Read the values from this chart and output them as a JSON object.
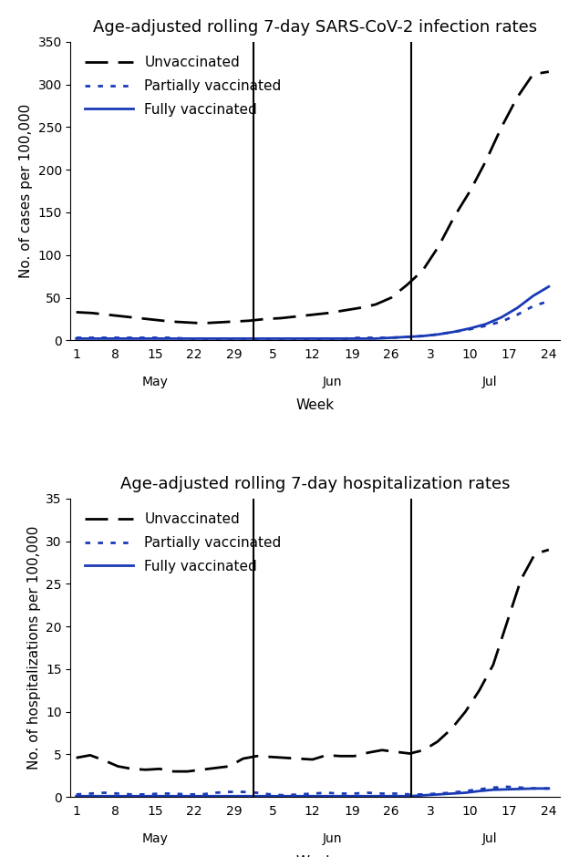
{
  "title1": "Age-adjusted rolling 7-day SARS-CoV-2 infection rates",
  "title2": "Age-adjusted rolling 7-day hospitalization rates",
  "ylabel1": "No. of cases per 100,000",
  "ylabel2": "No. of hospitalizations per 100,000",
  "xlabel": "Week",
  "ylim1": [
    0,
    350
  ],
  "ylim2": [
    0,
    35
  ],
  "yticks1": [
    0,
    50,
    100,
    150,
    200,
    250,
    300,
    350
  ],
  "yticks2": [
    0,
    5,
    10,
    15,
    20,
    25,
    30,
    35
  ],
  "legend_labels": [
    "Unvaccinated",
    "Partially vaccinated",
    "Fully vaccinated"
  ],
  "infection_unvaccinated": [
    33,
    32,
    30,
    28,
    26,
    24,
    22,
    21,
    20,
    21,
    22,
    23,
    25,
    26,
    28,
    30,
    32,
    35,
    38,
    42,
    50,
    65,
    82,
    110,
    145,
    175,
    210,
    250,
    285,
    312,
    315
  ],
  "infection_partial": [
    3,
    3,
    3,
    3,
    3,
    3,
    3,
    2,
    2,
    2,
    2,
    2,
    2,
    2,
    2,
    2,
    2,
    2,
    3,
    3,
    3,
    4,
    5,
    7,
    10,
    13,
    17,
    22,
    30,
    40,
    46
  ],
  "infection_full": [
    2,
    2,
    2,
    2,
    2,
    2,
    2,
    2,
    2,
    2,
    2,
    2,
    2,
    2,
    2,
    2,
    2,
    2,
    2,
    2,
    3,
    4,
    5,
    7,
    10,
    14,
    19,
    27,
    38,
    52,
    63
  ],
  "hosp_unvaccinated": [
    4.6,
    4.9,
    4.3,
    3.6,
    3.3,
    3.2,
    3.3,
    3.0,
    3.0,
    3.2,
    3.4,
    3.6,
    4.5,
    4.8,
    4.7,
    4.6,
    4.5,
    4.4,
    4.9,
    4.8,
    4.8,
    5.2,
    5.5,
    5.3,
    5.1,
    5.5,
    6.5,
    8.0,
    10.0,
    12.5,
    15.5,
    20.5,
    25.5,
    28.5,
    29.0
  ],
  "hosp_partial": [
    0.3,
    0.4,
    0.5,
    0.4,
    0.3,
    0.3,
    0.4,
    0.4,
    0.3,
    0.3,
    0.5,
    0.6,
    0.6,
    0.5,
    0.3,
    0.2,
    0.3,
    0.4,
    0.5,
    0.4,
    0.4,
    0.5,
    0.4,
    0.4,
    0.3,
    0.3,
    0.4,
    0.5,
    0.7,
    0.9,
    1.1,
    1.2,
    1.1,
    1.0,
    1.0
  ],
  "hosp_full": [
    0.1,
    0.1,
    0.1,
    0.1,
    0.1,
    0.1,
    0.1,
    0.1,
    0.1,
    0.1,
    0.1,
    0.1,
    0.1,
    0.1,
    0.1,
    0.1,
    0.1,
    0.1,
    0.1,
    0.1,
    0.1,
    0.1,
    0.1,
    0.1,
    0.1,
    0.2,
    0.3,
    0.4,
    0.5,
    0.7,
    0.85,
    0.9,
    0.95,
    1.0,
    1.0
  ],
  "background_color": "#ffffff",
  "line_color_black": "#000000",
  "line_color_blue": "#1a3ab5",
  "title_fontsize": 13,
  "label_fontsize": 11,
  "tick_fontsize": 10,
  "legend_fontsize": 11
}
